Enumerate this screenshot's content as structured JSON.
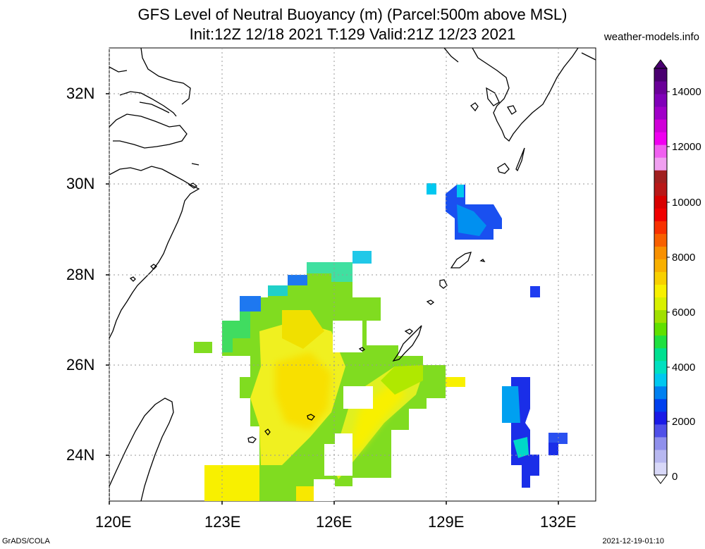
{
  "title": {
    "line1": "GFS Level of Neutral Buoyancy (m) (Parcel:500m above MSL)",
    "line2": "Init:12Z 12/18 2021 T:129 Valid:21Z 12/23 2021"
  },
  "site": "weather-models.info",
  "footer": {
    "left": "GrADS/COLA",
    "right": "2021-12-19-01:10"
  },
  "axes": {
    "lat_labels": [
      "32N",
      "30N",
      "28N",
      "26N",
      "24N"
    ],
    "lon_labels": [
      "120E",
      "123E",
      "126E",
      "129E",
      "132E"
    ]
  },
  "colorbar": {
    "labels": [
      "14000",
      "12000",
      "10000",
      "8000",
      "6000",
      "4000",
      "2000",
      "0"
    ],
    "colors": [
      "#d8d8f8",
      "#b8b8f0",
      "#9090ec",
      "#5050e8",
      "#1a1ae6",
      "#0040ee",
      "#0080f0",
      "#00c8f0",
      "#00e0c0",
      "#00e090",
      "#20e040",
      "#60e000",
      "#a0e000",
      "#d8f000",
      "#f8f000",
      "#f8d000",
      "#f8b000",
      "#f89000",
      "#f86000",
      "#f83000",
      "#f00000",
      "#d80000",
      "#b81818",
      "#a02020",
      "#f0a0f0",
      "#f060f0",
      "#f000f0",
      "#d000d8",
      "#a000c8",
      "#8000b8",
      "#6a0098",
      "#4a0070"
    ]
  },
  "map": {
    "region": "East China Sea",
    "lon_range": [
      120,
      133
    ],
    "lat_range": [
      23,
      33
    ],
    "grid": "dotted"
  }
}
